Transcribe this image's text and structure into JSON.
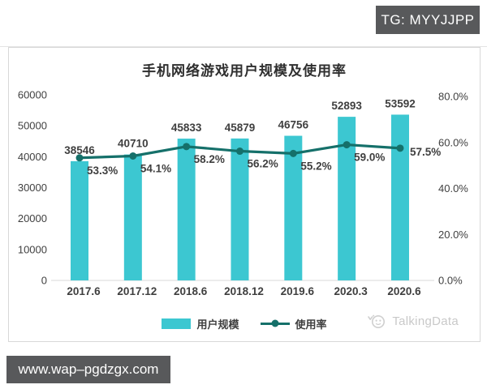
{
  "overlay": {
    "tg_badge": "TG: MYYJJPP",
    "url_badge": "www.wap–pgdzgx.com"
  },
  "watermark": {
    "brand": "TalkingData"
  },
  "chart_data": {
    "type": "bar",
    "subtype": "bar+line combo, dual axis",
    "title": "手机网络游戏用户规模及使用率",
    "categories": [
      "2017.6",
      "2017.12",
      "2018.6",
      "2018.12",
      "2019.6",
      "2020.3",
      "2020.6"
    ],
    "series": [
      {
        "name": "用户规模",
        "type": "bar",
        "axis": "left",
        "color": "#3cc7d1",
        "values": [
          38546,
          40710,
          45833,
          45879,
          46756,
          52893,
          53592
        ],
        "data_labels": [
          "38546",
          "40710",
          "45833",
          "45879",
          "46756",
          "52893",
          "53592"
        ]
      },
      {
        "name": "使用率",
        "type": "line",
        "axis": "right",
        "color": "#15706a",
        "values": [
          53.3,
          54.1,
          58.2,
          56.2,
          55.2,
          59.0,
          57.5
        ],
        "data_labels": [
          "53.3%",
          "54.1%",
          "58.2%",
          "56.2%",
          "55.2%",
          "59.0%",
          "57.5%"
        ]
      }
    ],
    "left_axis": {
      "min": 0,
      "max": 60000,
      "step": 10000,
      "tick_labels": [
        "0",
        "10000",
        "20000",
        "30000",
        "40000",
        "50000",
        "60000"
      ]
    },
    "right_axis": {
      "min": 0,
      "max": 80,
      "step": 20,
      "tick_labels": [
        "0.0%",
        "20.0%",
        "40.0%",
        "60.0%",
        "80.0%"
      ]
    },
    "grid": "off",
    "legend_position": "bottom",
    "text_color": "#3f3f3f",
    "baseline_color": "#d9d9d9"
  }
}
